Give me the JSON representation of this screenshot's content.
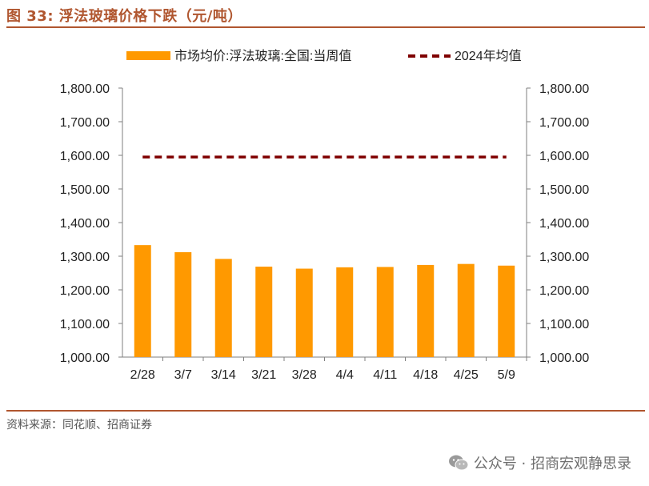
{
  "title": "图 33:  浮法玻璃价格下跌（元/吨）",
  "source": "资料来源：同花顺、招商证券",
  "watermark": "公众号 · 招商宏观静思录",
  "colors": {
    "bar": "#ff9900",
    "avg_line": "#7f0000",
    "accent": "#b0562f"
  },
  "chart_data": {
    "type": "bar",
    "categories": [
      "2/28",
      "3/7",
      "3/14",
      "3/21",
      "3/28",
      "4/4",
      "4/11",
      "4/18",
      "4/25",
      "5/9"
    ],
    "series": [
      {
        "name": "市场均价:浮法玻璃:全国:当周值",
        "type": "bar",
        "values": [
          1333,
          1312,
          1292,
          1269,
          1263,
          1267,
          1268,
          1274,
          1277,
          1272
        ]
      },
      {
        "name": "2024年均值",
        "type": "line",
        "style": "dashed",
        "values": [
          1595,
          1595,
          1595,
          1595,
          1595,
          1595,
          1595,
          1595,
          1595,
          1595
        ]
      }
    ],
    "yticks": [
      "1,000.00",
      "1,100.00",
      "1,200.00",
      "1,300.00",
      "1,400.00",
      "1,500.00",
      "1,600.00",
      "1,700.00",
      "1,800.00"
    ],
    "ylim": [
      1000,
      1800
    ],
    "right_axis": true,
    "grid": false,
    "legend_position": "top"
  }
}
